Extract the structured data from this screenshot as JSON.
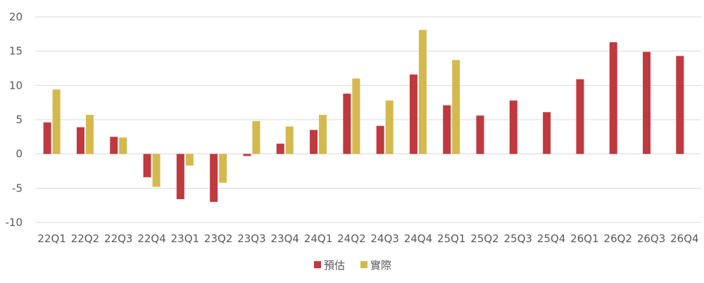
{
  "chart_data": {
    "type": "bar",
    "categories": [
      "22Q1",
      "22Q2",
      "22Q3",
      "22Q4",
      "23Q1",
      "23Q2",
      "23Q3",
      "23Q4",
      "24Q1",
      "24Q2",
      "24Q3",
      "24Q4",
      "25Q1",
      "25Q2",
      "25Q3",
      "25Q4",
      "26Q1",
      "26Q2",
      "26Q3",
      "26Q4"
    ],
    "series": [
      {
        "name": "預估",
        "color": "#c0393f",
        "values": [
          4.6,
          3.9,
          2.5,
          -3.4,
          -6.6,
          -7.0,
          -0.3,
          1.5,
          3.5,
          8.8,
          4.1,
          11.6,
          7.1,
          5.6,
          7.8,
          6.1,
          10.9,
          16.3,
          14.9,
          14.3
        ]
      },
      {
        "name": "實際",
        "color": "#d4b94e",
        "values": [
          9.4,
          5.7,
          2.4,
          -4.8,
          -1.7,
          -4.2,
          4.8,
          4.0,
          5.7,
          11.0,
          7.8,
          18.1,
          13.7,
          null,
          null,
          null,
          null,
          null,
          null,
          null
        ]
      }
    ],
    "ylim": [
      -10,
      20
    ],
    "yticks": [
      "-10",
      "-5",
      "0",
      "5",
      "10",
      "15",
      "20"
    ],
    "grid": true,
    "legend_position": "bottom-center",
    "title": "",
    "xlabel": "",
    "ylabel": ""
  }
}
